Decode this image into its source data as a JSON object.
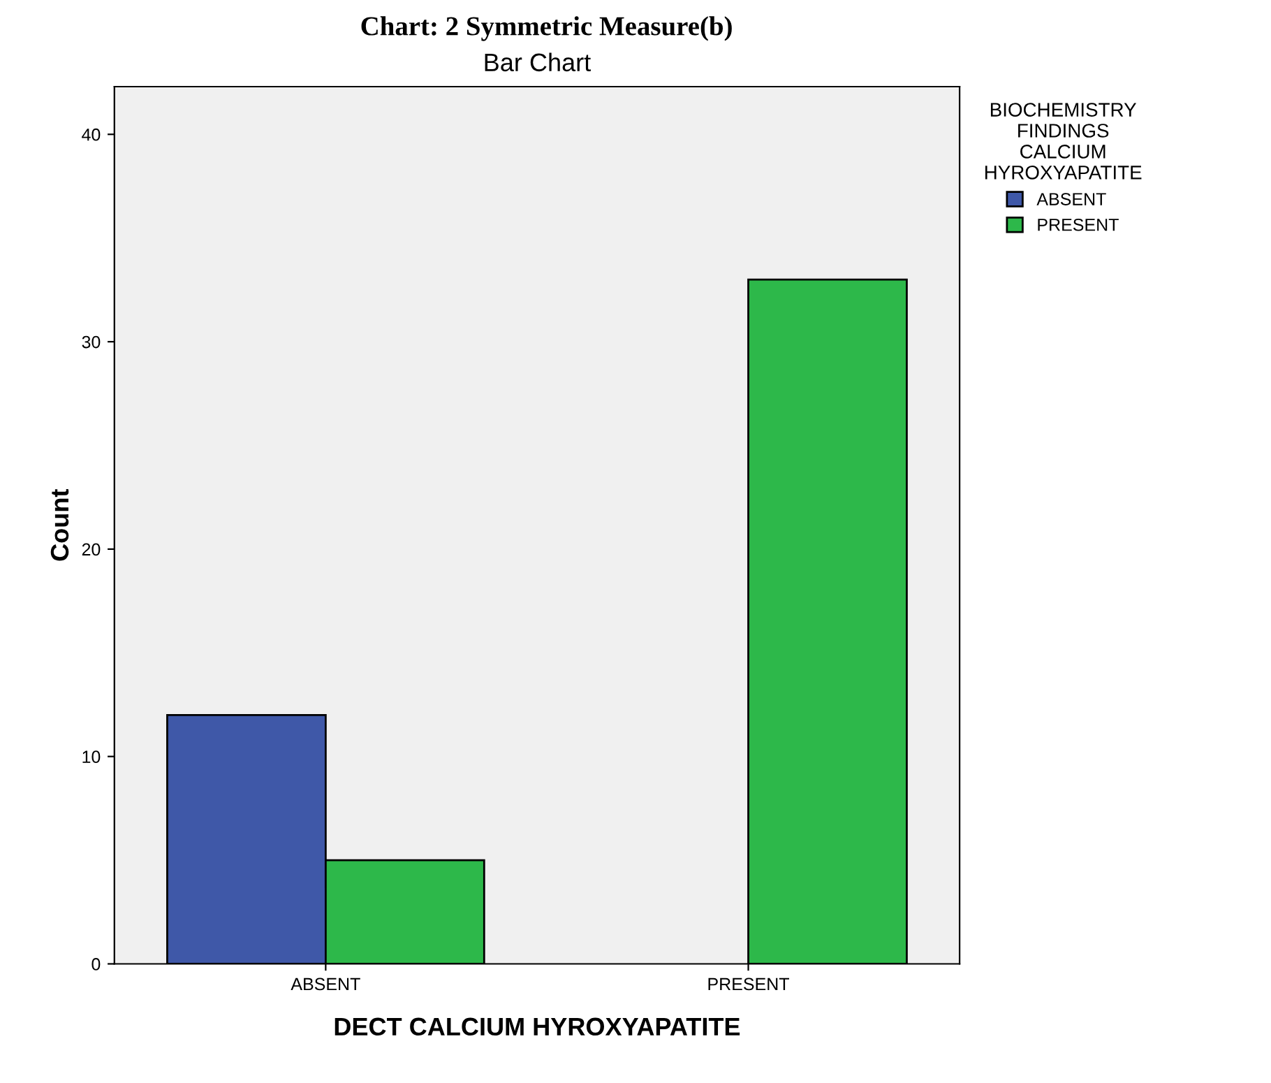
{
  "chart_data": {
    "type": "bar",
    "title": "Chart: 2 Symmetric Measure(b)",
    "subtitle": "Bar Chart",
    "xlabel": "DECT CALCIUM HYROXYAPATITE",
    "ylabel": "Count",
    "legend_title": "BIOCHEMISTRY FINDINGS CALCIUM HYROXYAPATITE",
    "categories": [
      "ABSENT",
      "PRESENT"
    ],
    "series": [
      {
        "name": "ABSENT",
        "color": "#3f58a8",
        "values": [
          12,
          null
        ]
      },
      {
        "name": "PRESENT",
        "color": "#2db84a",
        "values": [
          5,
          33
        ]
      }
    ],
    "ylim": [
      0,
      42.3
    ],
    "yticks": [
      0,
      10,
      20,
      30,
      40
    ],
    "grid": false,
    "legend": "top right"
  }
}
